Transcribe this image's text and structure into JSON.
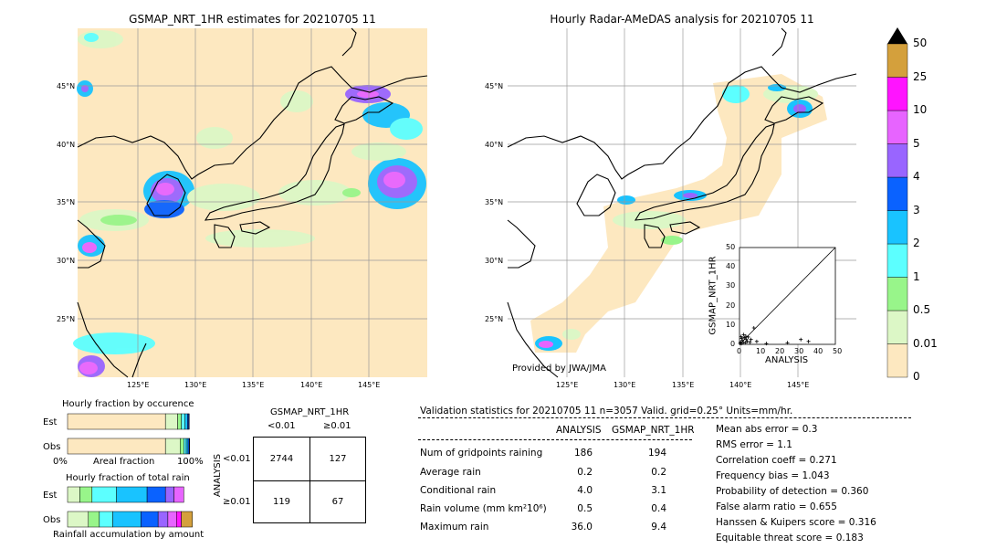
{
  "left_map": {
    "title": "GSMAP_NRT_1HR estimates for 20210705 11",
    "lat_labels": [
      "45°N",
      "40°N",
      "35°N",
      "30°N",
      "25°N"
    ],
    "lon_labels": [
      "125°E",
      "130°E",
      "135°E",
      "140°E",
      "145°E"
    ]
  },
  "right_map": {
    "title": "Hourly Radar-AMeDAS analysis for 20210705 11",
    "lat_labels": [
      "45°N",
      "40°N",
      "35°N",
      "30°N",
      "25°N"
    ],
    "lon_labels": [
      "125°E",
      "130°E",
      "135°E",
      "140°E",
      "145°E"
    ],
    "credit": "Provided by JWA/JMA"
  },
  "colorbar": {
    "labels": [
      "0",
      "0.01",
      "0.5",
      "1",
      "2",
      "3",
      "4",
      "5",
      "10",
      "25",
      "50"
    ],
    "colors": [
      "#fde8c0",
      "#dcf7c6",
      "#98f58a",
      "#5cffff",
      "#19c3ff",
      "#0a62ff",
      "#9965ff",
      "#e764ff",
      "#ff14ff",
      "#d4a03c",
      "#000000"
    ]
  },
  "scatter": {
    "xlabel": "ANALYSIS",
    "ylabel": "GSMAP_NRT_1HR",
    "ticks": [
      "0",
      "10",
      "20",
      "30",
      "40",
      "50"
    ]
  },
  "fraction_occurrence": {
    "title": "Hourly fraction by occurence",
    "row_est": "Est",
    "row_obs": "Obs",
    "axis_left": "0%",
    "axis_mid": "Areal fraction",
    "axis_right": "100%"
  },
  "fraction_total": {
    "title": "Hourly fraction of total rain",
    "row_est": "Est",
    "row_obs": "Obs",
    "caption": "Rainfall accumulation by amount"
  },
  "contingency": {
    "title": "GSMAP_NRT_1HR",
    "col_lt": "<0.01",
    "col_ge": "≥0.01",
    "row_lt": "<0.01",
    "row_ge": "≥0.01",
    "side": "ANALYSIS",
    "a": "2744",
    "b": "127",
    "c": "119",
    "d": "67"
  },
  "validation": {
    "header": "Validation statistics for 20210705 11  n=3057 Valid. grid=0.25° Units=mm/hr.",
    "col_analysis": "ANALYSIS",
    "col_gsmap": "GSMAP_NRT_1HR",
    "rows": [
      {
        "label": "Num of gridpoints raining",
        "analysis": "186",
        "gsmap": "194"
      },
      {
        "label": "Average rain",
        "analysis": "0.2",
        "gsmap": "0.2"
      },
      {
        "label": "Conditional rain",
        "analysis": "4.0",
        "gsmap": "3.1"
      },
      {
        "label": "Rain volume (mm km²10⁶)",
        "analysis": "0.5",
        "gsmap": "0.4"
      },
      {
        "label": "Maximum rain",
        "analysis": "36.0",
        "gsmap": "9.4"
      }
    ],
    "scores": [
      "Mean abs error =    0.3",
      "RMS error =    1.1",
      "Correlation coeff =  0.271",
      "Frequency bias =  1.043",
      "Probability of detection =  0.360",
      "False alarm ratio =  0.655",
      "Hanssen & Kuipers score =  0.316",
      "Equitable threat score =  0.183"
    ]
  },
  "chart_data": [
    {
      "type": "scatter",
      "xlabel": "ANALYSIS",
      "ylabel": "GSMAP_NRT_1HR",
      "xlim": [
        0,
        50
      ],
      "ylim": [
        0,
        50
      ],
      "points": [
        [
          0.3,
          0.5
        ],
        [
          0.6,
          1.2
        ],
        [
          1.0,
          0.4
        ],
        [
          1.5,
          2.0
        ],
        [
          2.0,
          1.0
        ],
        [
          2.5,
          3.5
        ],
        [
          3.0,
          0.8
        ],
        [
          3.5,
          2.5
        ],
        [
          4.0,
          1.5
        ],
        [
          1.2,
          3.0
        ],
        [
          0.8,
          4.0
        ],
        [
          2.2,
          5.0
        ],
        [
          3.3,
          4.2
        ],
        [
          4.5,
          3.8
        ],
        [
          5.5,
          1.0
        ],
        [
          6.0,
          2.5
        ],
        [
          7.5,
          8.5
        ],
        [
          9.0,
          1.5
        ],
        [
          25.0,
          0.8
        ],
        [
          32.0,
          2.5
        ],
        [
          36.0,
          1.5
        ],
        [
          14.0,
          0.4
        ]
      ]
    },
    {
      "type": "bar",
      "title": "Hourly fraction by occurence",
      "categories": [
        "Est",
        "Obs"
      ],
      "series": [
        {
          "color": "#fde8c0",
          "values": [
            0.8,
            0.8
          ]
        },
        {
          "color": "#dcf7c6",
          "values": [
            0.1,
            0.12
          ]
        },
        {
          "color": "#98f58a",
          "values": [
            0.03,
            0.03
          ]
        },
        {
          "color": "#5cffff",
          "values": [
            0.03,
            0.02
          ]
        },
        {
          "color": "#19c3ff",
          "values": [
            0.02,
            0.015
          ]
        },
        {
          "color": "#0a62ff",
          "values": [
            0.01,
            0.01
          ]
        },
        {
          "color": "#9965ff",
          "values": [
            0.005,
            0.003
          ]
        }
      ]
    },
    {
      "type": "bar",
      "title": "Hourly fraction of total rain",
      "categories": [
        "Est",
        "Obs"
      ],
      "series": [
        {
          "color": "#dcf7c6",
          "values": [
            0.1,
            0.17
          ]
        },
        {
          "color": "#98f58a",
          "values": [
            0.1,
            0.09
          ]
        },
        {
          "color": "#5cffff",
          "values": [
            0.2,
            0.11
          ]
        },
        {
          "color": "#19c3ff",
          "values": [
            0.25,
            0.23
          ]
        },
        {
          "color": "#0a62ff",
          "values": [
            0.15,
            0.14
          ]
        },
        {
          "color": "#9965ff",
          "values": [
            0.07,
            0.08
          ]
        },
        {
          "color": "#e764ff",
          "values": [
            0.08,
            0.07
          ]
        },
        {
          "color": "#ff14ff",
          "values": [
            0.0,
            0.04
          ]
        },
        {
          "color": "#d4a03c",
          "values": [
            0.0,
            0.09
          ]
        }
      ]
    }
  ]
}
